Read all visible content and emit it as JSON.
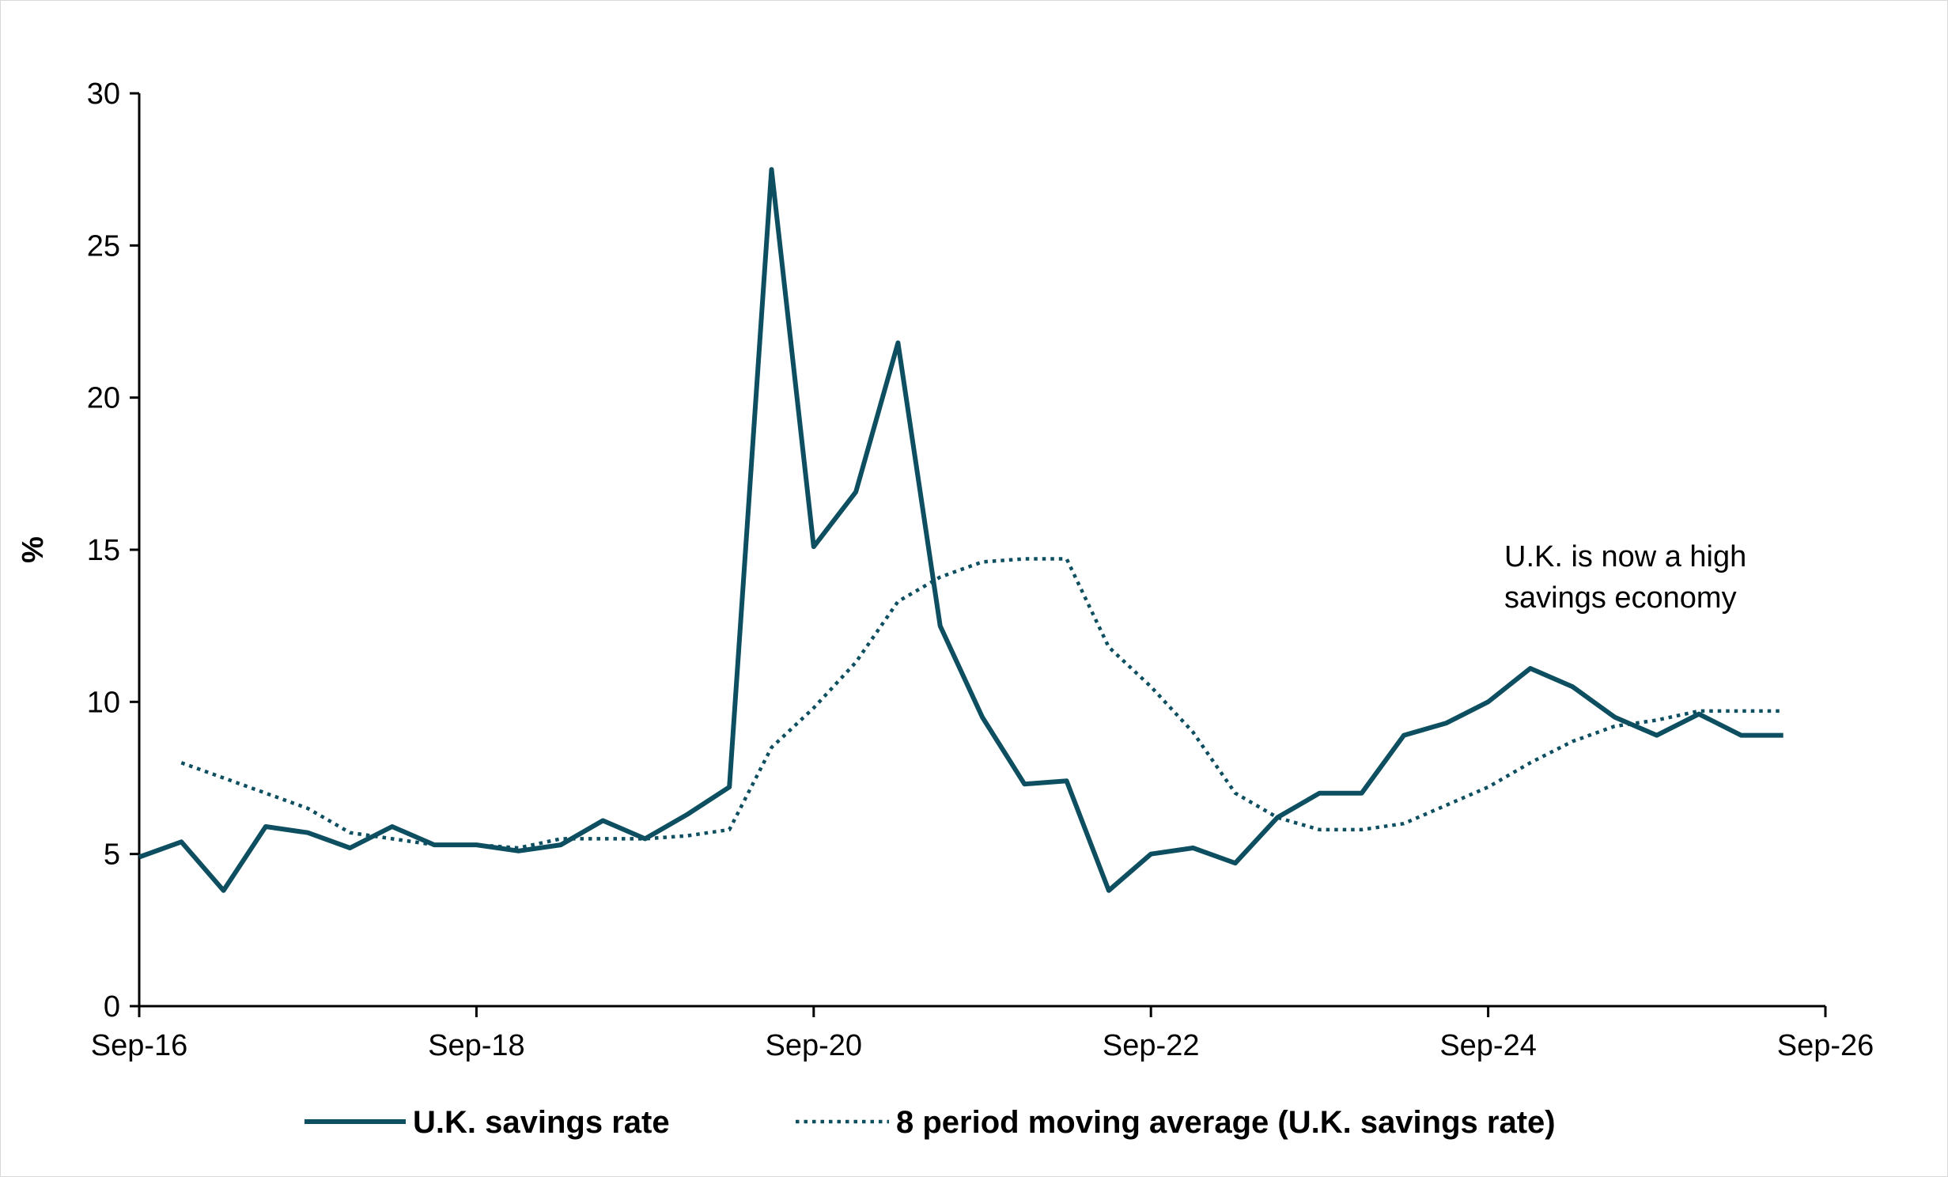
{
  "chart_data": {
    "type": "line",
    "ylabel": "%",
    "ylim": [
      0,
      30
    ],
    "yticks": [
      "0",
      "5",
      "10",
      "15",
      "20",
      "25",
      "30"
    ],
    "xticks": [
      "Sep-16",
      "Sep-18",
      "Sep-20",
      "Sep-22",
      "Sep-24",
      "Sep-26"
    ],
    "x_range": [
      "Sep-16",
      "Sep-26"
    ],
    "grid": false,
    "legend_position": "bottom",
    "annotation": [
      "U.K. is now a high",
      "savings economy"
    ],
    "x": [
      "Sep-16",
      "Dec-16",
      "Mar-17",
      "Jun-17",
      "Sep-17",
      "Dec-17",
      "Mar-18",
      "Jun-18",
      "Sep-18",
      "Dec-18",
      "Mar-19",
      "Jun-19",
      "Sep-19",
      "Dec-19",
      "Mar-20",
      "Jun-20",
      "Sep-20",
      "Dec-20",
      "Mar-21",
      "Jun-21",
      "Sep-21",
      "Dec-21",
      "Mar-22",
      "Jun-22",
      "Sep-22",
      "Dec-22",
      "Mar-23",
      "Jun-23",
      "Sep-23",
      "Dec-23",
      "Mar-24",
      "Jun-24",
      "Sep-24",
      "Dec-24",
      "Mar-25",
      "Jun-25",
      "Sep-25",
      "Dec-25",
      "Mar-26",
      "Jun-26"
    ],
    "series": [
      {
        "name": "U.K. savings rate",
        "style": "solid",
        "color": "#0d4f60",
        "values": [
          4.9,
          5.4,
          3.8,
          5.9,
          5.7,
          5.2,
          5.9,
          5.3,
          5.3,
          5.1,
          5.3,
          6.1,
          5.5,
          6.3,
          7.2,
          27.5,
          15.1,
          16.9,
          21.8,
          12.5,
          9.5,
          7.3,
          7.4,
          3.8,
          5.0,
          5.2,
          4.7,
          6.2,
          7.0,
          7.0,
          8.9,
          9.3,
          10.0,
          11.1,
          10.5,
          9.5,
          8.9,
          9.6,
          8.9,
          8.9
        ]
      },
      {
        "name": "8 period moving average (U.K. savings rate)",
        "style": "dotted",
        "color": "#0d4f60",
        "values": [
          null,
          8.0,
          7.5,
          7.0,
          6.5,
          5.7,
          5.5,
          5.3,
          5.3,
          5.2,
          5.5,
          5.5,
          5.5,
          5.6,
          5.8,
          8.5,
          9.8,
          11.3,
          13.3,
          14.1,
          14.6,
          14.7,
          14.7,
          11.8,
          10.5,
          9.0,
          7.0,
          6.2,
          5.8,
          5.8,
          6.0,
          6.6,
          7.2,
          8.0,
          8.7,
          9.2,
          9.4,
          9.7,
          9.7,
          9.7
        ]
      }
    ]
  }
}
